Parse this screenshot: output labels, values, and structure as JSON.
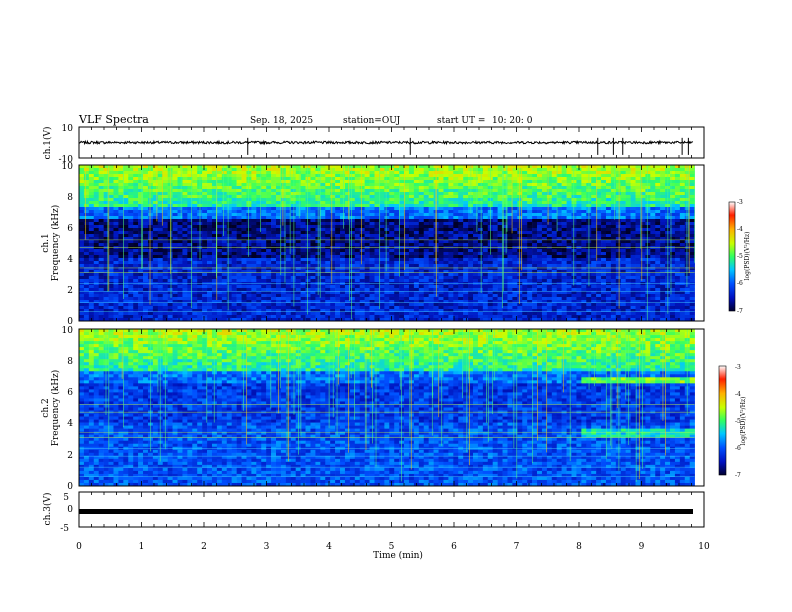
{
  "header": {
    "title": "VLF Spectra",
    "date": "Sep. 18, 2025",
    "station": "station=OUJ",
    "start_label": "start  UT  =",
    "start_time": "10: 20: 0"
  },
  "chart_data": [
    {
      "type": "line",
      "name": "ch1-waveform",
      "ylabel": "ch.1(V)",
      "ylim": [
        -10,
        10
      ],
      "y_ticks": [
        "10",
        "-10"
      ],
      "baseline": 0,
      "spikes_min": [
        2.7,
        5.3,
        8.3,
        8.55,
        8.7,
        9.65,
        9.75
      ]
    },
    {
      "type": "heatmap",
      "name": "ch1-spectrogram",
      "ylabel": "ch.1\nFrequency (kHz)",
      "ylim": [
        0,
        10
      ],
      "y_ticks": [
        "0",
        "2",
        "4",
        "6",
        "8",
        "10"
      ],
      "data_xlim_min": [
        0,
        9.85
      ],
      "colorbar": {
        "label": "log(PSD)(V²/Hz)",
        "range": [
          -7,
          -3
        ],
        "ticks": [
          "-3",
          "-4",
          "-5",
          "-6",
          "-7"
        ]
      }
    },
    {
      "type": "heatmap",
      "name": "ch2-spectrogram",
      "ylabel": "ch.2\nFrequency (kHz)",
      "ylim": [
        0,
        10
      ],
      "y_ticks": [
        "0",
        "2",
        "4",
        "6",
        "8",
        "10"
      ],
      "data_xlim_min": [
        0,
        9.85
      ],
      "colorbar": {
        "label": "log(PSD)(V²/Hz)",
        "range": [
          -7,
          -3
        ],
        "ticks": [
          "-3",
          "-4",
          "-5",
          "-6",
          "-7"
        ]
      }
    },
    {
      "type": "line",
      "name": "ch3-waveform",
      "ylabel": "ch.3(V)",
      "ylim": [
        -5,
        5
      ],
      "y_ticks": [
        "5",
        "0",
        "-5"
      ],
      "baseline": -1
    }
  ],
  "xaxis": {
    "label": "Time  (min)",
    "xlim": [
      0,
      10
    ],
    "ticks": [
      "0",
      "1",
      "2",
      "3",
      "4",
      "5",
      "6",
      "7",
      "8",
      "9",
      "10"
    ]
  },
  "colors": {
    "background": "#ffffff",
    "axis": "#000000"
  }
}
